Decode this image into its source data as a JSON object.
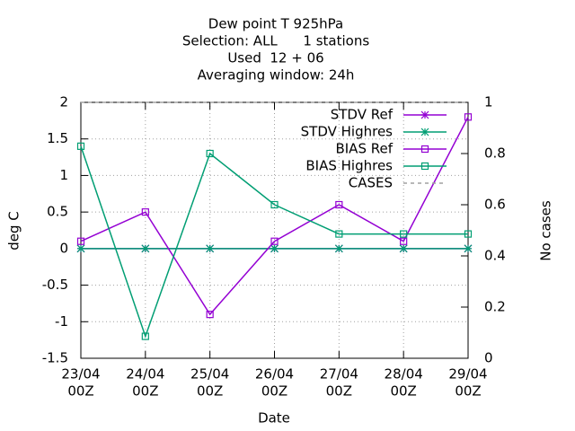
{
  "chart_data": {
    "type": "line",
    "title": [
      "Dew point T 925hPa",
      "Selection: ALL      1 stations",
      "Used  12 + 06",
      "Averaging window: 24h"
    ],
    "x_label": "Date",
    "y_label": "deg C",
    "y2_label": "No cases",
    "categories": [
      [
        "23/04",
        "00Z"
      ],
      [
        "24/04",
        "00Z"
      ],
      [
        "25/04",
        "00Z"
      ],
      [
        "26/04",
        "00Z"
      ],
      [
        "27/04",
        "00Z"
      ],
      [
        "28/04",
        "00Z"
      ],
      [
        "29/04",
        "00Z"
      ]
    ],
    "series": [
      {
        "name": "STDV Ref",
        "color": "#9400d3",
        "marker": "star",
        "values": [
          0,
          0,
          0,
          0,
          0,
          0,
          0
        ]
      },
      {
        "name": "STDV Highres",
        "color": "#009e73",
        "marker": "star",
        "values": [
          0,
          0,
          0,
          0,
          0,
          0,
          0
        ]
      },
      {
        "name": "BIAS Ref",
        "color": "#9400d3",
        "marker": "square",
        "values": [
          0.1,
          0.5,
          -0.9,
          0.1,
          0.6,
          0.1,
          1.8
        ]
      },
      {
        "name": "BIAS Highres",
        "color": "#009e73",
        "marker": "square",
        "values": [
          1.4,
          -1.2,
          1.3,
          0.6,
          0.2,
          0.2,
          0.2
        ]
      },
      {
        "name": "CASES",
        "color": "#a0a0a0",
        "marker": "dashed",
        "axis": "y2",
        "values": [
          1,
          1,
          1,
          1,
          1,
          1,
          1
        ]
      }
    ],
    "ylim": [
      -1.5,
      2
    ],
    "yticks": [
      -1.5,
      -1,
      -0.5,
      0,
      0.5,
      1,
      1.5,
      2
    ],
    "y2lim": [
      0,
      1
    ],
    "y2ticks": [
      0,
      0.2,
      0.4,
      0.6,
      0.8,
      1
    ],
    "grid": true,
    "legend": "top-right"
  }
}
